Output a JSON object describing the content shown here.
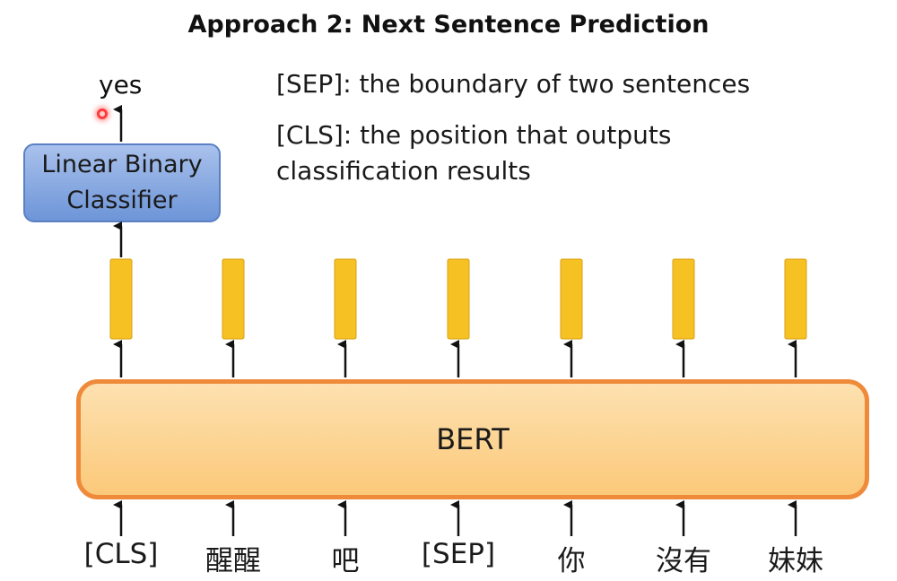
{
  "title": "Approach 2: Next Sentence Prediction",
  "notes": {
    "sep": "[SEP]: the boundary of two sentences",
    "cls_line1": "[CLS]: the position that outputs",
    "cls_line2": "classification results"
  },
  "output_label": "yes",
  "classifier": {
    "line1": "Linear Binary",
    "line2": "Classifier"
  },
  "model_label": "BERT",
  "tokens": [
    "[CLS]",
    "醒醒",
    "吧",
    "[SEP]",
    "你",
    "沒有",
    "妹妹"
  ],
  "colors": {
    "embedding_fill": "#f6c223",
    "bert_border": "#ee8a3a",
    "classifier_fill": "#7fa3e0"
  }
}
